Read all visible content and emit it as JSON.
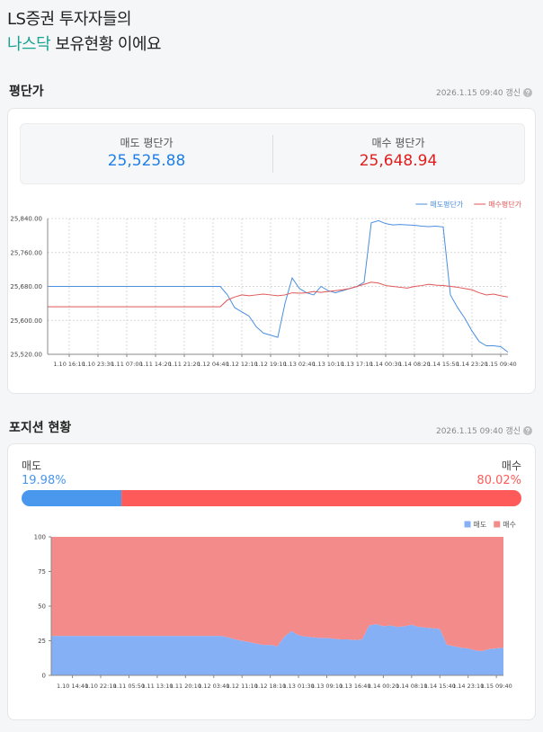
{
  "header": {
    "line1": "LS증권 투자자들의",
    "highlight": "나스닥",
    "rest": "보유현황 이에요"
  },
  "avg_price": {
    "title": "평단가",
    "updated": "2026.1.15 09:40 갱신",
    "sell": {
      "label": "매도 평단가",
      "value": "25,525.88"
    },
    "buy": {
      "label": "매수 평단가",
      "value": "25,648.94"
    }
  },
  "position": {
    "title": "포지션 현황",
    "updated": "2026.1.15 09:40 갱신",
    "sell": {
      "label": "매도",
      "value": 19.98,
      "value_label": "19.98%",
      "color": "#4a97ee"
    },
    "buy": {
      "label": "매수",
      "value": 80.02,
      "value_label": "80.02%",
      "color": "#ff5a5a"
    }
  },
  "chart_data": [
    {
      "type": "line",
      "categories": [
        null,
        null,
        null,
        "1.10 16:10",
        null,
        null,
        null,
        "1.10 23:30",
        null,
        null,
        null,
        "1.11 07:00",
        null,
        null,
        null,
        "1.11 14:20",
        null,
        null,
        null,
        "1.11 21:20",
        null,
        null,
        null,
        "1.12 04:40",
        null,
        null,
        null,
        "1.12 12:10",
        null,
        null,
        null,
        "1.12 19:10",
        null,
        null,
        null,
        "1.13 02:40",
        null,
        null,
        null,
        "1.13 10:10",
        null,
        null,
        null,
        "1.13 17:10",
        null,
        null,
        null,
        "1.14 00:30",
        null,
        null,
        null,
        "1.14 08:20",
        null,
        null,
        null,
        "1.14 15:50",
        null,
        null,
        null,
        "1.14 23:20",
        null,
        null,
        null,
        "1.15 09:40",
        null
      ],
      "series": [
        {
          "name": "매도평단가",
          "color": "#4a8fe0",
          "values": [
            25680,
            25680,
            25680,
            25680,
            25680,
            25680,
            25680,
            25680,
            25680,
            25680,
            25680,
            25680,
            25680,
            25680,
            25680,
            25680,
            25680,
            25680,
            25680,
            25680,
            25680,
            25680,
            25680,
            25680,
            25680,
            25660,
            25630,
            25620,
            25610,
            25585,
            25570,
            25565,
            25560,
            25640,
            25700,
            25675,
            25665,
            25660,
            25680,
            25670,
            25665,
            25670,
            25675,
            25680,
            25690,
            25830,
            25835,
            25828,
            25825,
            25826,
            25825,
            25824,
            25822,
            25821,
            25822,
            25820,
            25660,
            25630,
            25605,
            25575,
            25550,
            25540,
            25540,
            25538,
            25525
          ]
        },
        {
          "name": "매수평단가",
          "color": "#e05656",
          "values": [
            25632,
            25632,
            25632,
            25632,
            25632,
            25632,
            25632,
            25632,
            25632,
            25632,
            25632,
            25632,
            25632,
            25632,
            25632,
            25632,
            25632,
            25632,
            25632,
            25632,
            25632,
            25632,
            25632,
            25632,
            25632,
            25648,
            25655,
            25660,
            25658,
            25660,
            25662,
            25660,
            25658,
            25660,
            25665,
            25664,
            25665,
            25668,
            25666,
            25668,
            25670,
            25672,
            25675,
            25680,
            25685,
            25690,
            25688,
            25682,
            25680,
            25678,
            25676,
            25680,
            25682,
            25685,
            25683,
            25682,
            25680,
            25678,
            25675,
            25672,
            25665,
            25660,
            25662,
            25658,
            25655
          ]
        }
      ],
      "ylim": [
        25520,
        25840
      ],
      "yticks": [
        {
          "value": 25520,
          "label": "25,520.00"
        },
        {
          "value": 25600,
          "label": "25,600.00"
        },
        {
          "value": 25680,
          "label": "25,680.00"
        },
        {
          "value": 25760,
          "label": "25,760.00"
        },
        {
          "value": 25840,
          "label": "25,840.00"
        }
      ],
      "grid": true,
      "legend": "top-right"
    },
    {
      "type": "stacked_area",
      "categories": [
        null,
        null,
        null,
        "1.10 14:40",
        null,
        null,
        null,
        "1.10 22:10",
        null,
        null,
        null,
        "1.11 05:50",
        null,
        null,
        null,
        "1.11 13:10",
        null,
        null,
        null,
        "1.11 20:10",
        null,
        null,
        null,
        "1.12 03:40",
        null,
        null,
        null,
        "1.12 11:10",
        null,
        null,
        null,
        "1.12 18:10",
        null,
        null,
        null,
        "1.13 01:30",
        null,
        null,
        null,
        "1.13 09:10",
        null,
        null,
        null,
        "1.13 16:40",
        null,
        null,
        null,
        "1.14 00:20",
        null,
        null,
        null,
        "1.14 08:10",
        null,
        null,
        null,
        "1.14 15:40",
        null,
        null,
        null,
        "1.14 23:10",
        null,
        null,
        null,
        "1.15 09:40",
        null
      ],
      "series": [
        {
          "name": "매도",
          "color": "#86b0f6",
          "values": [
            28.5,
            28.5,
            28.5,
            28.5,
            28.5,
            28.5,
            28.5,
            28.5,
            28.5,
            28.5,
            28.5,
            28.5,
            28.5,
            28.5,
            28.5,
            28.5,
            28.5,
            28.5,
            28.5,
            28.5,
            28.5,
            28.5,
            28.5,
            28.5,
            28.5,
            27.5,
            26,
            25,
            24,
            23,
            22,
            22,
            21,
            28,
            32,
            29,
            28,
            27.5,
            27,
            27,
            26.5,
            26,
            26,
            25.5,
            26,
            36,
            37,
            35.5,
            36,
            35,
            35.5,
            36.5,
            35,
            34.5,
            34,
            33.5,
            22,
            21,
            20,
            19.5,
            18,
            17.5,
            19,
            19.5,
            19.98
          ]
        },
        {
          "name": "매수",
          "color": "#f48b8b",
          "values": [
            71.5,
            71.5,
            71.5,
            71.5,
            71.5,
            71.5,
            71.5,
            71.5,
            71.5,
            71.5,
            71.5,
            71.5,
            71.5,
            71.5,
            71.5,
            71.5,
            71.5,
            71.5,
            71.5,
            71.5,
            71.5,
            71.5,
            71.5,
            71.5,
            71.5,
            72.5,
            74,
            75,
            76,
            77,
            78,
            78,
            79,
            72,
            68,
            71,
            72,
            72.5,
            73,
            73,
            73.5,
            74,
            74,
            74.5,
            74,
            64,
            63,
            64.5,
            64,
            65,
            64.5,
            63.5,
            65,
            65.5,
            66,
            66.5,
            78,
            79,
            80,
            80.5,
            82,
            82.5,
            81,
            80.5,
            80.02
          ]
        }
      ],
      "ylim": [
        0,
        100
      ],
      "yticks": [
        0,
        25,
        50,
        75,
        100
      ],
      "grid": false,
      "legend": "top-right"
    }
  ]
}
